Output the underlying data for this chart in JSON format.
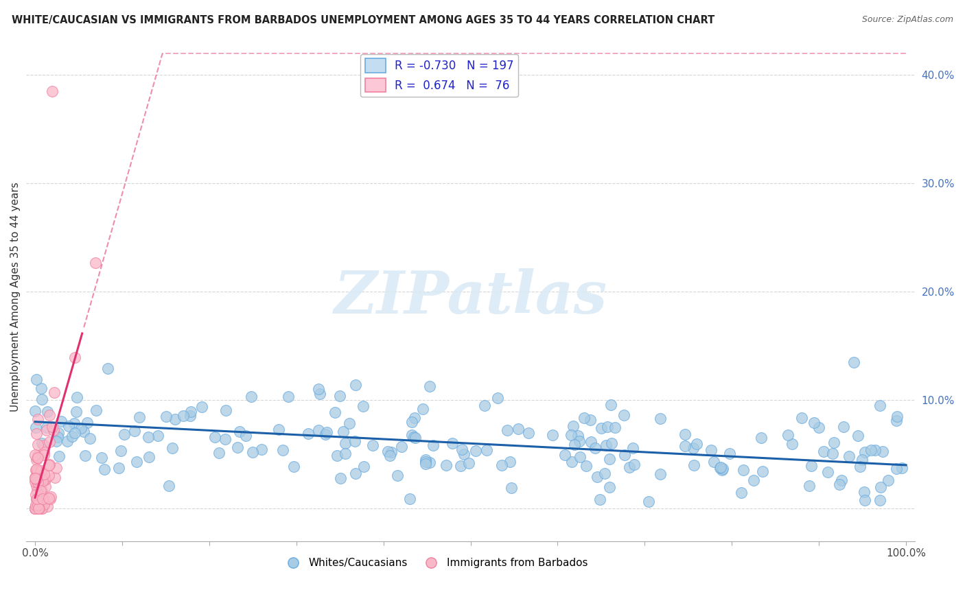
{
  "title": "WHITE/CAUCASIAN VS IMMIGRANTS FROM BARBADOS UNEMPLOYMENT AMONG AGES 35 TO 44 YEARS CORRELATION CHART",
  "source": "Source: ZipAtlas.com",
  "ylabel": "Unemployment Among Ages 35 to 44 years",
  "xlim": [
    0,
    100
  ],
  "ylim": [
    -3,
    42
  ],
  "blue_R": -0.73,
  "blue_N": 197,
  "pink_R": 0.674,
  "pink_N": 76,
  "blue_dot_face": "#a8cce4",
  "blue_dot_edge": "#6aabe0",
  "pink_dot_face": "#f9b8c8",
  "pink_dot_edge": "#f080a0",
  "blue_line_color": "#1a5fa8",
  "pink_line_color": "#e03070",
  "watermark_color": "#daeaf5",
  "legend_color": "#2222cc",
  "blue_intercept": 8.0,
  "blue_slope": -0.04,
  "pink_intercept": 1.0,
  "pink_slope": 2.8,
  "pink_solid_max_x": 5.5,
  "blue_seed": 12,
  "pink_seed": 99
}
